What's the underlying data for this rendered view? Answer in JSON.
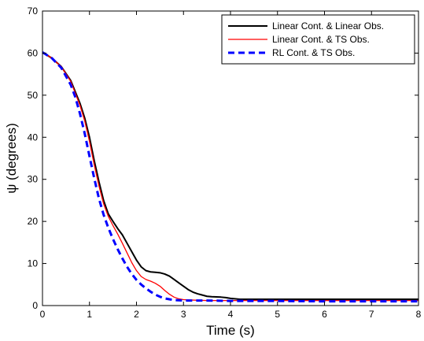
{
  "chart_data": {
    "type": "line",
    "title": "",
    "xlabel": "Time (s)",
    "ylabel": "ψ (degrees)",
    "xlim": [
      0,
      8
    ],
    "ylim": [
      0,
      70
    ],
    "x_ticks": [
      0,
      1,
      2,
      3,
      4,
      5,
      6,
      7,
      8
    ],
    "y_ticks": [
      0,
      10,
      20,
      30,
      40,
      50,
      60,
      70
    ],
    "grid": false,
    "legend_position": "top-right",
    "series": [
      {
        "name": "Linear Cont. & Linear Obs.",
        "color": "#000000",
        "style": "solid",
        "points": [
          [
            0,
            60.2
          ],
          [
            0.2,
            58.8
          ],
          [
            0.4,
            56.8
          ],
          [
            0.6,
            53.5
          ],
          [
            0.8,
            48.0
          ],
          [
            0.9,
            44.5
          ],
          [
            1.0,
            40.0
          ],
          [
            1.1,
            34.5
          ],
          [
            1.2,
            29.5
          ],
          [
            1.3,
            25.0
          ],
          [
            1.4,
            21.8
          ],
          [
            1.5,
            20.0
          ],
          [
            1.6,
            18.3
          ],
          [
            1.7,
            16.8
          ],
          [
            1.8,
            14.8
          ],
          [
            1.9,
            12.8
          ],
          [
            2.0,
            10.8
          ],
          [
            2.1,
            9.2
          ],
          [
            2.2,
            8.3
          ],
          [
            2.3,
            8.0
          ],
          [
            2.4,
            7.9
          ],
          [
            2.5,
            7.8
          ],
          [
            2.6,
            7.5
          ],
          [
            2.7,
            7.0
          ],
          [
            2.8,
            6.2
          ],
          [
            2.9,
            5.4
          ],
          [
            3.0,
            4.6
          ],
          [
            3.1,
            3.8
          ],
          [
            3.2,
            3.2
          ],
          [
            3.3,
            2.8
          ],
          [
            3.4,
            2.5
          ],
          [
            3.5,
            2.2
          ],
          [
            3.6,
            2.1
          ],
          [
            3.8,
            2.0
          ],
          [
            3.9,
            1.9
          ],
          [
            4.0,
            1.7
          ],
          [
            4.2,
            1.5
          ],
          [
            4.5,
            1.5
          ],
          [
            5.0,
            1.5
          ],
          [
            6.0,
            1.5
          ],
          [
            7.0,
            1.5
          ],
          [
            8.0,
            1.5
          ]
        ]
      },
      {
        "name": "Linear Cont. & TS Obs.",
        "color": "#ff0000",
        "style": "solid",
        "points": [
          [
            0,
            60.2
          ],
          [
            0.2,
            58.8
          ],
          [
            0.4,
            56.8
          ],
          [
            0.6,
            53.3
          ],
          [
            0.8,
            47.5
          ],
          [
            0.9,
            43.8
          ],
          [
            1.0,
            39.0
          ],
          [
            1.1,
            33.5
          ],
          [
            1.2,
            28.5
          ],
          [
            1.3,
            24.2
          ],
          [
            1.4,
            21.2
          ],
          [
            1.5,
            19.0
          ],
          [
            1.6,
            17.0
          ],
          [
            1.7,
            14.8
          ],
          [
            1.8,
            12.5
          ],
          [
            1.9,
            10.2
          ],
          [
            2.0,
            8.3
          ],
          [
            2.1,
            6.9
          ],
          [
            2.2,
            6.2
          ],
          [
            2.3,
            5.8
          ],
          [
            2.4,
            5.3
          ],
          [
            2.5,
            4.6
          ],
          [
            2.6,
            3.6
          ],
          [
            2.7,
            2.7
          ],
          [
            2.8,
            2.0
          ],
          [
            2.9,
            1.6
          ],
          [
            3.0,
            1.4
          ],
          [
            3.2,
            1.3
          ],
          [
            3.5,
            1.2
          ],
          [
            4.0,
            1.2
          ],
          [
            5.0,
            1.2
          ],
          [
            6.0,
            1.2
          ],
          [
            7.0,
            1.2
          ],
          [
            8.0,
            1.2
          ]
        ]
      },
      {
        "name": "RL Cont. & TS Obs.",
        "color": "#0000ff",
        "style": "dashed",
        "points": [
          [
            0,
            60.2
          ],
          [
            0.2,
            58.8
          ],
          [
            0.4,
            56.5
          ],
          [
            0.6,
            52.5
          ],
          [
            0.7,
            49.5
          ],
          [
            0.8,
            45.5
          ],
          [
            0.9,
            40.8
          ],
          [
            1.0,
            35.5
          ],
          [
            1.1,
            30.3
          ],
          [
            1.2,
            25.5
          ],
          [
            1.3,
            21.6
          ],
          [
            1.4,
            18.5
          ],
          [
            1.5,
            15.8
          ],
          [
            1.6,
            13.4
          ],
          [
            1.7,
            11.2
          ],
          [
            1.8,
            9.2
          ],
          [
            1.9,
            7.5
          ],
          [
            2.0,
            6.1
          ],
          [
            2.1,
            5.0
          ],
          [
            2.2,
            4.1
          ],
          [
            2.3,
            3.3
          ],
          [
            2.4,
            2.6
          ],
          [
            2.5,
            2.1
          ],
          [
            2.6,
            1.7
          ],
          [
            2.7,
            1.5
          ],
          [
            2.8,
            1.3
          ],
          [
            3.0,
            1.2
          ],
          [
            3.5,
            1.2
          ],
          [
            4.0,
            1.1
          ],
          [
            5.0,
            1.1
          ],
          [
            6.0,
            1.0
          ],
          [
            7.0,
            1.0
          ],
          [
            8.0,
            1.0
          ]
        ]
      }
    ]
  }
}
